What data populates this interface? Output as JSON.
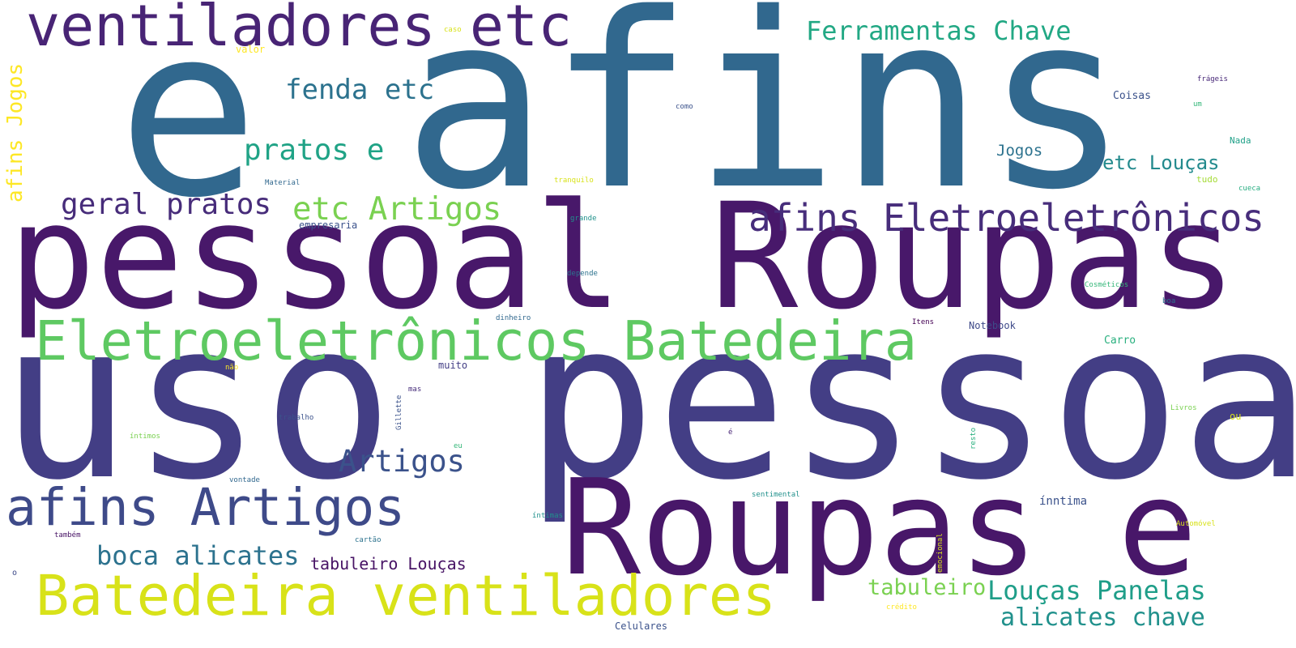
{
  "words": [
    {
      "text": "afins",
      "color": "#31688e"
    },
    {
      "text": "e",
      "color": "#31688e"
    },
    {
      "text": "uso pessoal",
      "color": "#433e85"
    },
    {
      "text": "pessoal Roupas",
      "color": "#48186a"
    },
    {
      "text": "Roupas e",
      "color": "#481769"
    },
    {
      "text": "ventiladores etc",
      "color": "#482475"
    },
    {
      "text": "Eletroeletrônicos Batedeira",
      "color": "#5ec962"
    },
    {
      "text": "Batedeira ventiladores",
      "color": "#d8e219"
    },
    {
      "text": "afins Artigos",
      "color": "#3e4a89"
    },
    {
      "text": "afins Eletroeletrônicos",
      "color": "#472d7b"
    },
    {
      "text": "Ferramentas Chave",
      "color": "#22a884"
    },
    {
      "text": "fenda etc",
      "color": "#2c728e"
    },
    {
      "text": "pratos e",
      "color": "#20a386"
    },
    {
      "text": "geral pratos",
      "color": "#472c7a"
    },
    {
      "text": "etc Artigos",
      "color": "#7ad151"
    },
    {
      "text": "Artigos",
      "color": "#3b528b"
    },
    {
      "text": "boca alicates",
      "color": "#2c728e"
    },
    {
      "text": "tabuleiro Louças",
      "color": "#471365"
    },
    {
      "text": "tabuleiro",
      "color": "#7ad151"
    },
    {
      "text": "Louças Panelas",
      "color": "#1f9e89"
    },
    {
      "text": "alicates chave",
      "color": "#21918c"
    },
    {
      "text": "etc Louças",
      "color": "#238a8d"
    },
    {
      "text": "Jogos",
      "color": "#2c728e"
    },
    {
      "text": "afins Jogos",
      "color": "#fde725"
    },
    {
      "text": "Coisas",
      "color": "#3b528b"
    },
    {
      "text": "Nada",
      "color": "#1fa088"
    },
    {
      "text": "frágeis",
      "color": "#482878"
    },
    {
      "text": "um",
      "color": "#35b779"
    },
    {
      "text": "tudo",
      "color": "#a5db36"
    },
    {
      "text": "cueca",
      "color": "#27ad81"
    },
    {
      "text": "Notebook",
      "color": "#3e4a89"
    },
    {
      "text": "Carro",
      "color": "#2ab07f"
    },
    {
      "text": "Cosméticos",
      "color": "#35b779"
    },
    {
      "text": "boa",
      "color": "#2c728e"
    },
    {
      "text": "Itens",
      "color": "#440154"
    },
    {
      "text": "muito",
      "color": "#433e85"
    },
    {
      "text": "ínntima",
      "color": "#3b528b"
    },
    {
      "text": "caso",
      "color": "#d8e219"
    },
    {
      "text": "valor",
      "color": "#fde725"
    },
    {
      "text": "como",
      "color": "#3b528b"
    },
    {
      "text": "Material",
      "color": "#31688e"
    },
    {
      "text": "tranquilo",
      "color": "#d8e219"
    },
    {
      "text": "grande",
      "color": "#21918c"
    },
    {
      "text": "empresaria",
      "color": "#3b528b"
    },
    {
      "text": "depende",
      "color": "#2c728e"
    },
    {
      "text": "dinheiro",
      "color": "#31688e"
    },
    {
      "text": "não",
      "color": "#fde725"
    },
    {
      "text": "mas",
      "color": "#472d7b"
    },
    {
      "text": "trabalho",
      "color": "#3b528b"
    },
    {
      "text": "íntimos",
      "color": "#7ad151"
    },
    {
      "text": "eu",
      "color": "#35b779"
    },
    {
      "text": "é",
      "color": "#482475"
    },
    {
      "text": "vontade",
      "color": "#31688e"
    },
    {
      "text": "também",
      "color": "#471365"
    },
    {
      "text": "cartão",
      "color": "#2c728e"
    },
    {
      "text": "íntimas",
      "color": "#21918c"
    },
    {
      "text": "sentimental",
      "color": "#21918c"
    },
    {
      "text": "Livros",
      "color": "#7ad151"
    },
    {
      "text": "ou",
      "color": "#d8e219"
    },
    {
      "text": "Automóvel",
      "color": "#d8e219"
    },
    {
      "text": "crédito",
      "color": "#fde725"
    },
    {
      "text": "Celulares",
      "color": "#3b528b"
    },
    {
      "text": "o",
      "color": "#3e4a89"
    },
    {
      "text": "Gillette",
      "color": "#3b528b"
    },
    {
      "text": "resto",
      "color": "#2ab07f"
    },
    {
      "text": "emocional",
      "color": "#d8e219"
    }
  ]
}
